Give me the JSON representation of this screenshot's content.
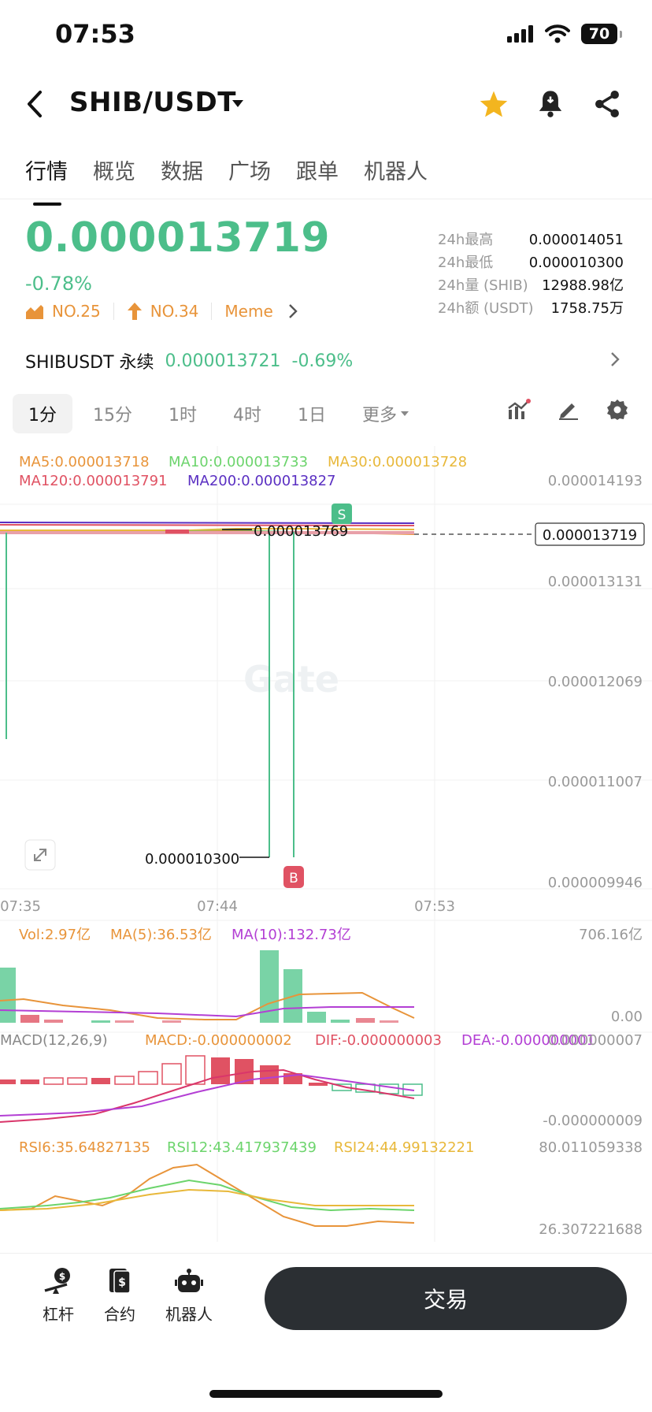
{
  "status": {
    "time": "07:53",
    "battery": "70"
  },
  "header": {
    "pair": "SHIB/USDT"
  },
  "tabs": [
    {
      "label": "行情"
    },
    {
      "label": "概览"
    },
    {
      "label": "数据"
    },
    {
      "label": "广场"
    },
    {
      "label": "跟单"
    },
    {
      "label": "机器人"
    }
  ],
  "ticker": {
    "price": "0.000013719",
    "change": "-0.78%",
    "rank1": "NO.25",
    "rank2": "NO.34",
    "tag": "Meme",
    "stats": [
      {
        "label": "24h最高",
        "value": "0.000014051"
      },
      {
        "label": "24h最低",
        "value": "0.000010300"
      },
      {
        "label": "24h量 (SHIB)",
        "value": "12988.98亿"
      },
      {
        "label": "24h额 (USDT)",
        "value": "1758.75万"
      }
    ]
  },
  "perp": {
    "name": "SHIBUSDT 永续",
    "price": "0.000013721",
    "change": "-0.69%"
  },
  "intervals": [
    {
      "label": "1分"
    },
    {
      "label": "15分"
    },
    {
      "label": "1时"
    },
    {
      "label": "4时"
    },
    {
      "label": "1日"
    },
    {
      "label": "更多"
    }
  ],
  "chart": {
    "ma": [
      "MA5:0.000013718",
      "MA10:0.000013733",
      "MA30:0.000013728",
      "MA120:0.000013791",
      "MA200:0.000013827"
    ],
    "y_ticks": [
      "0.000014193",
      "0.000013131",
      "0.000012069",
      "0.000011007",
      "0.000009946"
    ],
    "current_price": "0.000013719",
    "high_label": "0.000013769",
    "low_label": "0.000010300",
    "x_ticks": [
      "07:35",
      "07:44",
      "07:53"
    ],
    "watermark": "Gate",
    "sell_marker": "S",
    "buy_marker": "B",
    "vol": {
      "label": "Vol:2.97亿",
      "ma5": "MA(5):36.53亿",
      "ma10": "MA(10):132.73亿",
      "max": "706.16亿",
      "min": "0.00"
    },
    "macd": {
      "label": "MACD(12,26,9)",
      "macd": "MACD:-0.000000002",
      "dif": "DIF:-0.000000003",
      "dea": "DEA:-0.000000001",
      "max": "0.000000007",
      "min": "-0.000000009"
    },
    "rsi": {
      "rsi6": "RSI6:35.64827135",
      "rsi12": "RSI12:43.417937439",
      "rsi24": "RSI24:44.99132221",
      "max": "80.011059338",
      "min": "26.307221688"
    }
  },
  "colors": {
    "up": "#4cbe8a",
    "down": "#e05263",
    "ma5": "#e8943a",
    "ma10": "#6cd46c",
    "ma30": "#e8b83a",
    "ma120": "#e05263",
    "ma200": "#5a2fc2"
  },
  "bottom_nav": [
    {
      "label": "杠杆"
    },
    {
      "label": "合约"
    },
    {
      "label": "机器人"
    }
  ],
  "trade_button": "交易"
}
